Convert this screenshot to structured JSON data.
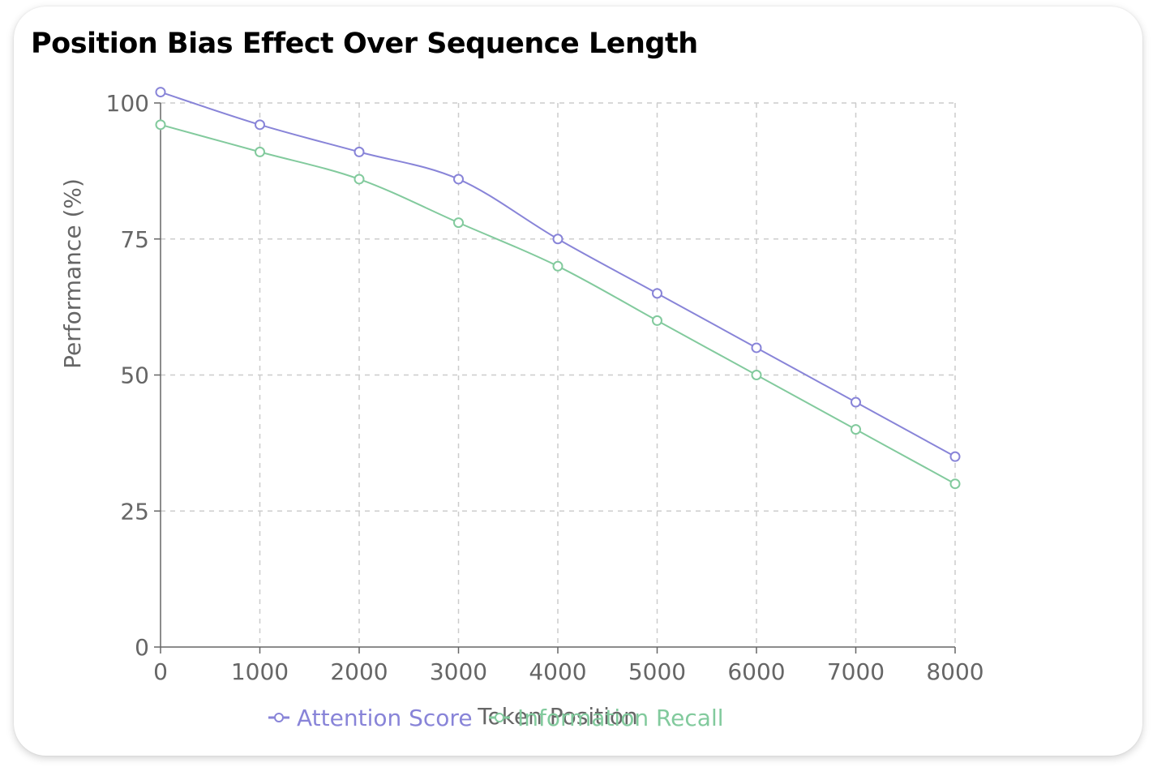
{
  "chart_data": {
    "type": "line",
    "title": "Position Bias Effect Over Sequence Length",
    "xlabel": "Token Position",
    "ylabel": "Performance (%)",
    "x": [
      0,
      1000,
      2000,
      3000,
      4000,
      5000,
      6000,
      7000,
      8000
    ],
    "xlim": [
      0,
      8000
    ],
    "ylim": [
      0,
      100
    ],
    "yticks": [
      0,
      25,
      50,
      75,
      100
    ],
    "grid": true,
    "legend_position": "bottom",
    "series": [
      {
        "name": "Attention Score",
        "color": "#8884d8",
        "values": [
          102,
          96,
          91,
          86,
          75,
          65,
          55,
          45,
          35
        ]
      },
      {
        "name": "Information Recall",
        "color": "#82ca9d",
        "values": [
          96,
          91,
          86,
          78,
          70,
          60,
          50,
          40,
          30
        ]
      }
    ]
  }
}
